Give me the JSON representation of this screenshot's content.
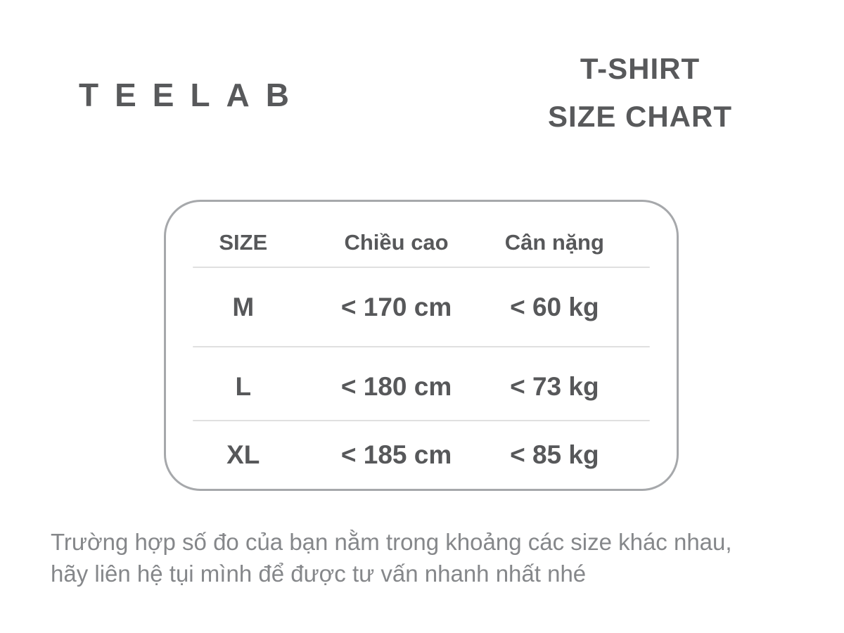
{
  "brand": {
    "logo": "TEELAB"
  },
  "title": {
    "line1": "T-SHIRT",
    "line2": "SIZE CHART"
  },
  "size_table": {
    "columns": [
      "SIZE",
      "Chiều cao",
      "Cân nặng"
    ],
    "rows": [
      {
        "size": "M",
        "height": "< 170 cm",
        "weight": "< 60 kg"
      },
      {
        "size": "L",
        "height": "< 180 cm",
        "weight": "< 73 kg"
      },
      {
        "size": "XL",
        "height": "< 185 cm",
        "weight": "< 85 kg"
      }
    ]
  },
  "note": {
    "lines": [
      "Trường hợp số đo của bạn nằm trong khoảng các size khác nhau,",
      "hãy liên hệ tụi mình để được tư vấn nhanh nhất nhé"
    ]
  },
  "colors": {
    "text_dark": "#58595b",
    "border_gray": "#a6a8ab",
    "divider_gray": "#e0e0e0",
    "note_gray": "#85878a",
    "background": "#ffffff"
  }
}
